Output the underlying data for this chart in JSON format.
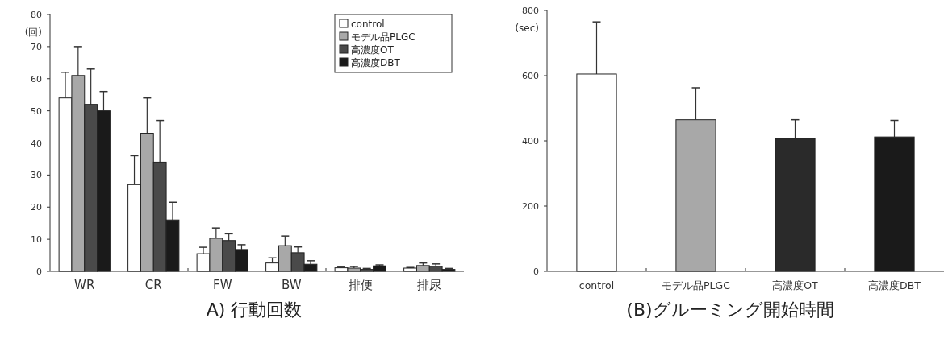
{
  "chart_data": [
    {
      "type": "bar",
      "title": "A) 行動回数",
      "ylabel": "(回)",
      "categories": [
        "WR",
        "CR",
        "FW",
        "BW",
        "排便",
        "排尿"
      ],
      "ylim": [
        0,
        80
      ],
      "yticks": [
        0,
        10,
        20,
        30,
        40,
        50,
        60,
        70,
        80
      ],
      "legend": "top right",
      "series": [
        {
          "name": "control",
          "color": "#ffffff",
          "values": [
            54,
            27,
            5.5,
            2.6,
            1.1,
            1.0
          ],
          "errors": [
            [
              54,
              62
            ],
            [
              27,
              36
            ],
            [
              5.5,
              7.5
            ],
            [
              2.6,
              4.2
            ],
            [
              1.1,
              1.3
            ],
            [
              1.0,
              1.2
            ]
          ]
        },
        {
          "name": "モデル品PLGC",
          "color": "#a8a8a8",
          "values": [
            61,
            43,
            10.3,
            8,
            1.0,
            1.8
          ],
          "errors": [
            [
              61,
              70
            ],
            [
              43,
              54
            ],
            [
              10.3,
              13.5
            ],
            [
              8,
              11
            ],
            [
              1.0,
              1.5
            ],
            [
              1.8,
              2.6
            ]
          ]
        },
        {
          "name": "高濃度OT",
          "color": "#4a4a4a",
          "values": [
            52,
            34,
            9.6,
            5.8,
            0.6,
            1.6
          ],
          "errors": [
            [
              52,
              63
            ],
            [
              34,
              47
            ],
            [
              9.6,
              11.7
            ],
            [
              5.8,
              7.6
            ],
            [
              0.6,
              0.9
            ],
            [
              1.6,
              2.3
            ]
          ]
        },
        {
          "name": "高濃度DBT",
          "color": "#1a1a1a",
          "values": [
            50,
            16,
            6.8,
            2.2,
            1.7,
            0.6
          ],
          "errors": [
            [
              50,
              56
            ],
            [
              16,
              21.5
            ],
            [
              6.8,
              8.3
            ],
            [
              2.2,
              3.3
            ],
            [
              1.7,
              2.0
            ],
            [
              0.6,
              0.9
            ]
          ]
        }
      ]
    },
    {
      "type": "bar",
      "title": "(B)グルーミング開始時間",
      "ylabel": "(sec)",
      "categories": [
        "control",
        "モデル品PLGC",
        "高濃度OT",
        "高濃度DBT"
      ],
      "ylim": [
        0,
        800
      ],
      "yticks": [
        0,
        200,
        400,
        600,
        800
      ],
      "values": [
        605,
        465,
        408,
        412
      ],
      "colors": [
        "#ffffff",
        "#a8a8a8",
        "#2a2a2a",
        "#1a1a1a"
      ],
      "errors": [
        [
          605,
          765
        ],
        [
          465,
          563
        ],
        [
          408,
          465
        ],
        [
          412,
          463
        ]
      ]
    }
  ]
}
